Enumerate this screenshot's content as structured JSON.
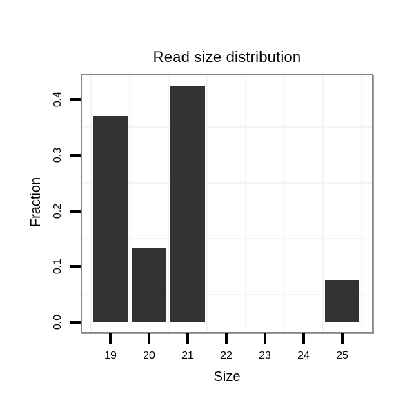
{
  "chart_data": {
    "type": "bar",
    "title": "Read size distribution",
    "xlabel": "Size",
    "ylabel": "Fraction",
    "categories": [
      19,
      20,
      21,
      22,
      23,
      24,
      25
    ],
    "values": [
      0.37,
      0.133,
      0.423,
      0,
      0,
      0,
      0.075
    ],
    "x_tick_labels": [
      "19",
      "20",
      "21",
      "22",
      "23",
      "24",
      "25"
    ],
    "y_tick_labels": [
      "0.0",
      "0.1",
      "0.2",
      "0.3",
      "0.4"
    ],
    "y_tick_values": [
      0,
      0.1,
      0.2,
      0.3,
      0.4
    ],
    "ylim": [
      0,
      0.445
    ],
    "legend_position": "none",
    "grid": "minor-lines-only",
    "minor_x": [
      18.5,
      19.5,
      20.5,
      21.5,
      22.5,
      23.5,
      24.5,
      25.5
    ],
    "minor_y": [
      0.05,
      0.15,
      0.25,
      0.35
    ],
    "colors": {
      "bar": "#333333",
      "panel_border": "#858585",
      "grid": "#f4f4f4",
      "tick": "#000000",
      "text": "#000000",
      "background": "#ffffff"
    }
  }
}
